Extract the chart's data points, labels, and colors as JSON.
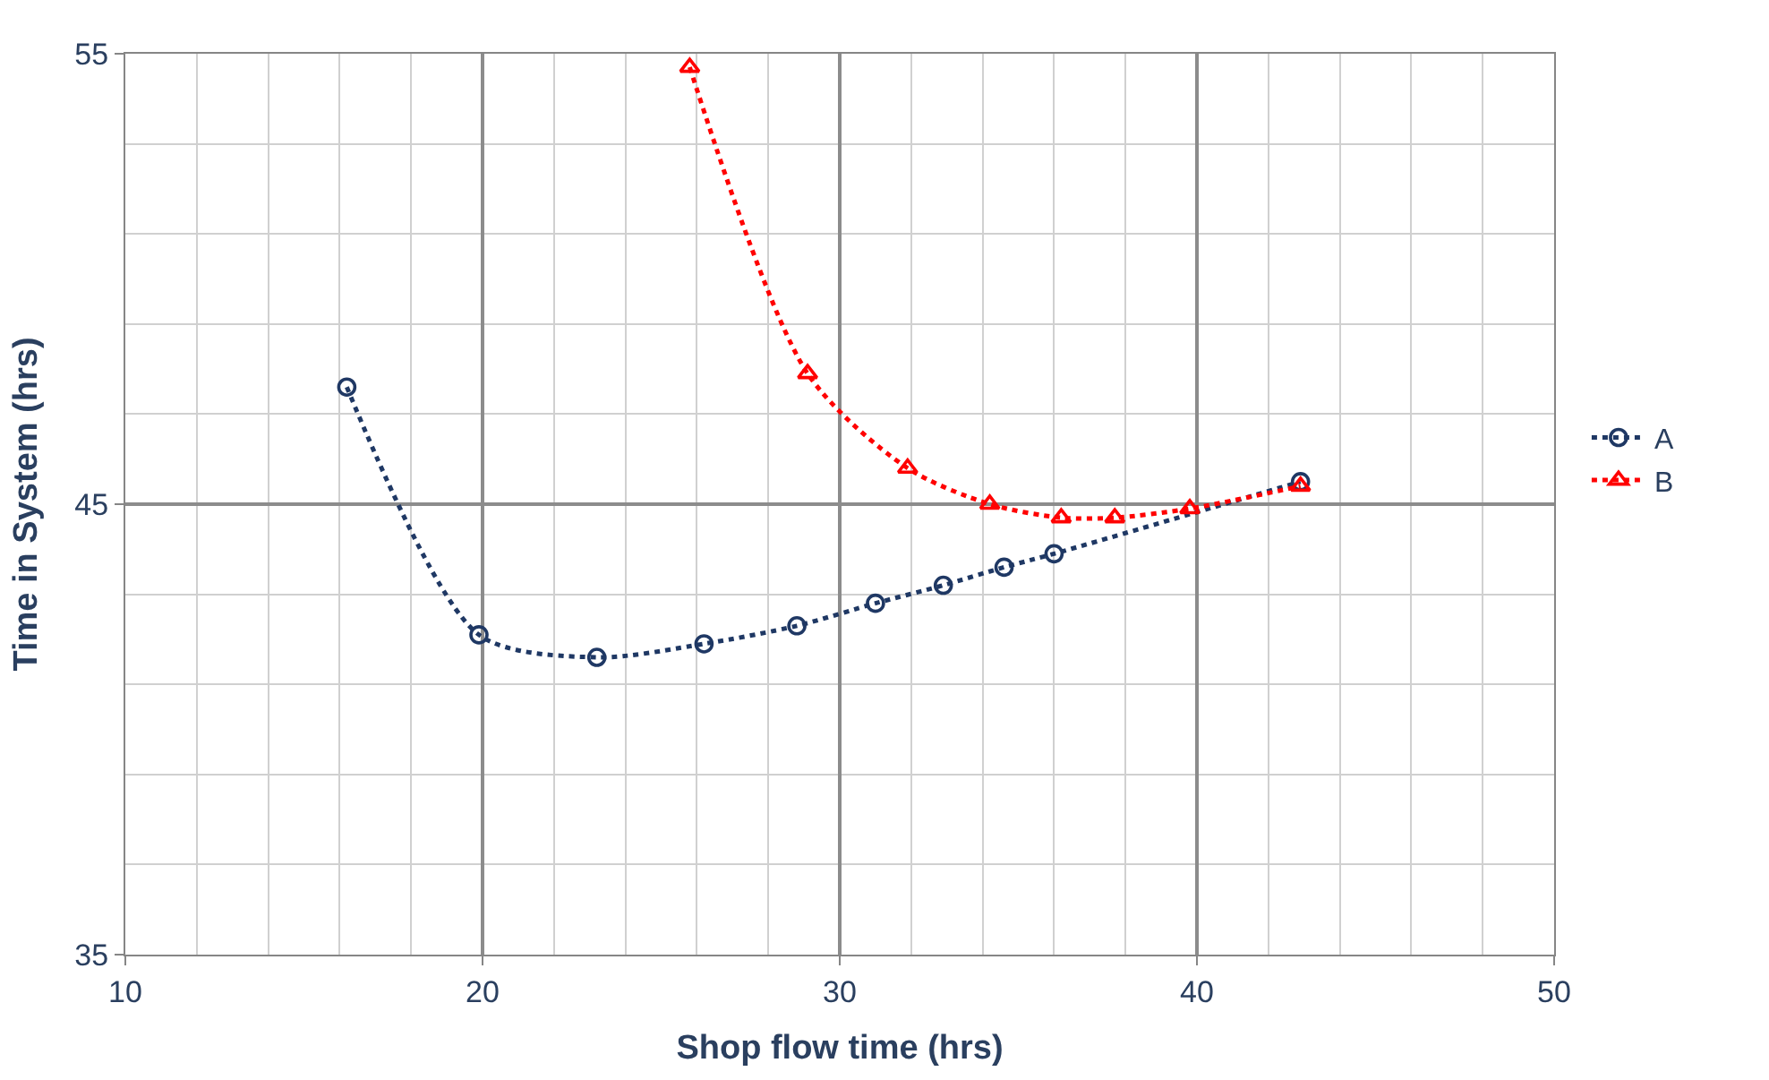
{
  "chart_data": {
    "type": "line",
    "xlabel": "Shop flow time (hrs)",
    "ylabel": "Time in System (hrs)",
    "xlim": [
      10,
      50
    ],
    "xticks": [
      10,
      20,
      30,
      40,
      50
    ],
    "ylim": [
      35,
      55
    ],
    "yticks": [
      35,
      45,
      55
    ],
    "grid": true,
    "legend": "right",
    "line_style": "dotted",
    "series": [
      {
        "name": "A",
        "color": "#1f3864",
        "marker": "circle",
        "x": [
          16.2,
          19.9,
          23.2,
          26.2,
          28.8,
          31.0,
          32.9,
          34.6,
          36.0,
          42.9
        ],
        "values": [
          47.6,
          42.1,
          41.6,
          41.9,
          42.3,
          42.8,
          43.2,
          43.6,
          43.9,
          45.5
        ]
      },
      {
        "name": "B",
        "color": "#ff0000",
        "marker": "triangle",
        "x": [
          25.8,
          29.1,
          31.9,
          34.2,
          36.2,
          37.7,
          39.8,
          42.9
        ],
        "values": [
          54.7,
          47.9,
          45.8,
          45.0,
          44.7,
          44.7,
          44.9,
          45.4
        ]
      }
    ]
  }
}
